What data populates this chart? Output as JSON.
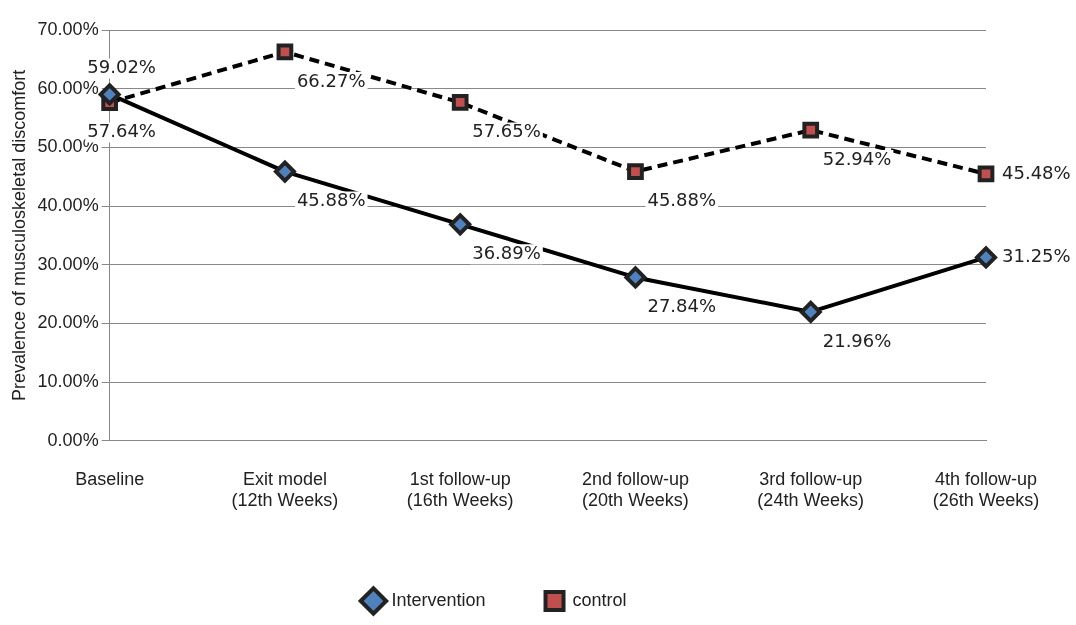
{
  "chart_data": {
    "type": "line",
    "ylabel": "Prevalence of musculoskeletal discomfort",
    "categories": [
      "Baseline",
      "Exit model\n(12th Weeks)",
      "1st follow-up\n(16th Weeks)",
      "2nd follow-up\n(20th Weeks)",
      "3rd follow-up\n(24th Weeks)",
      "4th follow-up\n(26th Weeks)"
    ],
    "series": [
      {
        "name": "Intervention",
        "color": "#4f81bd",
        "marker": "diamond",
        "line_style": "solid",
        "values": [
          59.02,
          45.88,
          36.89,
          27.84,
          21.96,
          31.25
        ],
        "value_labels": [
          "59.02%",
          "45.88%",
          "36.89%",
          "27.84%",
          "21.96%",
          "31.25%"
        ]
      },
      {
        "name": "control",
        "color": "#c0504d",
        "marker": "square",
        "line_style": "dashed",
        "values": [
          57.64,
          66.27,
          57.65,
          45.88,
          52.94,
          45.48
        ],
        "value_labels": [
          "57.64%",
          "66.27%",
          "57.65%",
          "45.88%",
          "52.94%",
          "45.48%"
        ]
      }
    ],
    "ylim": [
      0,
      70
    ],
    "yticks": [
      {
        "value": 0,
        "label": "0.00%"
      },
      {
        "value": 10,
        "label": "10.00%"
      },
      {
        "value": 20,
        "label": "20.00%"
      },
      {
        "value": 30,
        "label": "30.00%"
      },
      {
        "value": 40,
        "label": "40.00%"
      },
      {
        "value": 50,
        "label": "50.00%"
      },
      {
        "value": 60,
        "label": "60.00%"
      },
      {
        "value": 70,
        "label": "70.00%"
      }
    ],
    "grid": "y",
    "legend": "bottom"
  }
}
